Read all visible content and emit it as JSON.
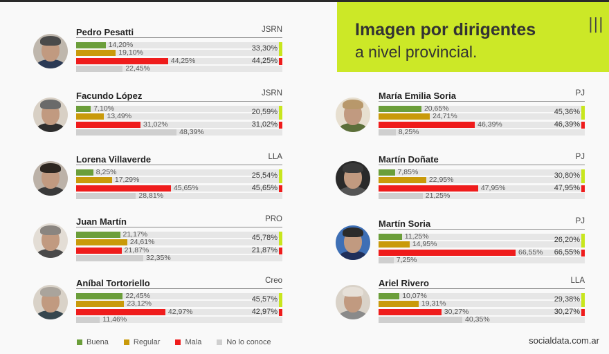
{
  "header": {
    "title_line1": "Imagen por dirigentes",
    "title_line2": "a nivel provincial.",
    "mark": "|||"
  },
  "legend": {
    "buena": "Buena",
    "regular": "Regular",
    "mala": "Mala",
    "no_conoce": "No lo conoce"
  },
  "source": "socialdata.com.ar",
  "colors": {
    "buena": "#6b9e3a",
    "regular": "#c99a0a",
    "mala": "#ef1c1c",
    "no_conoce": "#cfcfcf",
    "positive_indicator": "#c8e61e",
    "accent": "#cce827"
  },
  "chart_data": {
    "type": "bar",
    "series_names": [
      "Buena",
      "Regular",
      "Mala",
      "No lo conoce"
    ],
    "people": [
      {
        "name": "Pedro Pesatti",
        "party": "JSRN",
        "labels": [
          "14,20%",
          "19,10%",
          "44,25%",
          "22,45%"
        ],
        "values": [
          14.2,
          19.1,
          44.25,
          22.45
        ],
        "positive": "33,30%",
        "negative": "44,25%"
      },
      {
        "name": "Facundo López",
        "party": "JSRN",
        "labels": [
          "7,10%",
          "13,49%",
          "31,02%",
          "48,39%"
        ],
        "values": [
          7.1,
          13.49,
          31.02,
          48.39
        ],
        "positive": "20,59%",
        "negative": "31,02%"
      },
      {
        "name": "Lorena Villaverde",
        "party": "LLA",
        "labels": [
          "8,25%",
          "17,29%",
          "45,65%",
          "28,81%"
        ],
        "values": [
          8.25,
          17.29,
          45.65,
          28.81
        ],
        "positive": "25,54%",
        "negative": "45,65%"
      },
      {
        "name": "Juan Martín",
        "party": "PRO",
        "labels": [
          "21,17%",
          "24,61%",
          "21,87%",
          "32,35%"
        ],
        "values": [
          21.17,
          24.61,
          21.87,
          32.35
        ],
        "positive": "45,78%",
        "negative": "21,87%"
      },
      {
        "name": "Aníbal Tortoriello",
        "party": "Creo",
        "labels": [
          "22,45%",
          "23,12%",
          "42,97%",
          "11,46%"
        ],
        "values": [
          22.45,
          23.12,
          42.97,
          11.46
        ],
        "positive": "45,57%",
        "negative": "42,97%"
      },
      {
        "name": "María Emilia Soria",
        "party": "PJ",
        "labels": [
          "20,65%",
          "24,71%",
          "46,39%",
          "8,25%"
        ],
        "values": [
          20.65,
          24.71,
          46.39,
          8.25
        ],
        "positive": "45,36%",
        "negative": "46,39%"
      },
      {
        "name": "Martín Doñate",
        "party": "PJ",
        "labels": [
          "7,85%",
          "22,95%",
          "47,95%",
          "21,25%"
        ],
        "values": [
          7.85,
          22.95,
          47.95,
          21.25
        ],
        "positive": "30,80%",
        "negative": "47,95%"
      },
      {
        "name": "Martín Soria",
        "party": "PJ",
        "labels": [
          "11,25%",
          "14,95%",
          "66,55%",
          "7,25%"
        ],
        "values": [
          11.25,
          14.95,
          66.55,
          7.25
        ],
        "positive": "26,20%",
        "negative": "66,55%"
      },
      {
        "name": "Ariel Rivero",
        "party": "LLA",
        "labels": [
          "10,07%",
          "19,31%",
          "30,27%",
          "40,35%"
        ],
        "values": [
          10.07,
          19.31,
          30.27,
          40.35
        ],
        "positive": "29,38%",
        "negative": "30,27%"
      }
    ]
  }
}
